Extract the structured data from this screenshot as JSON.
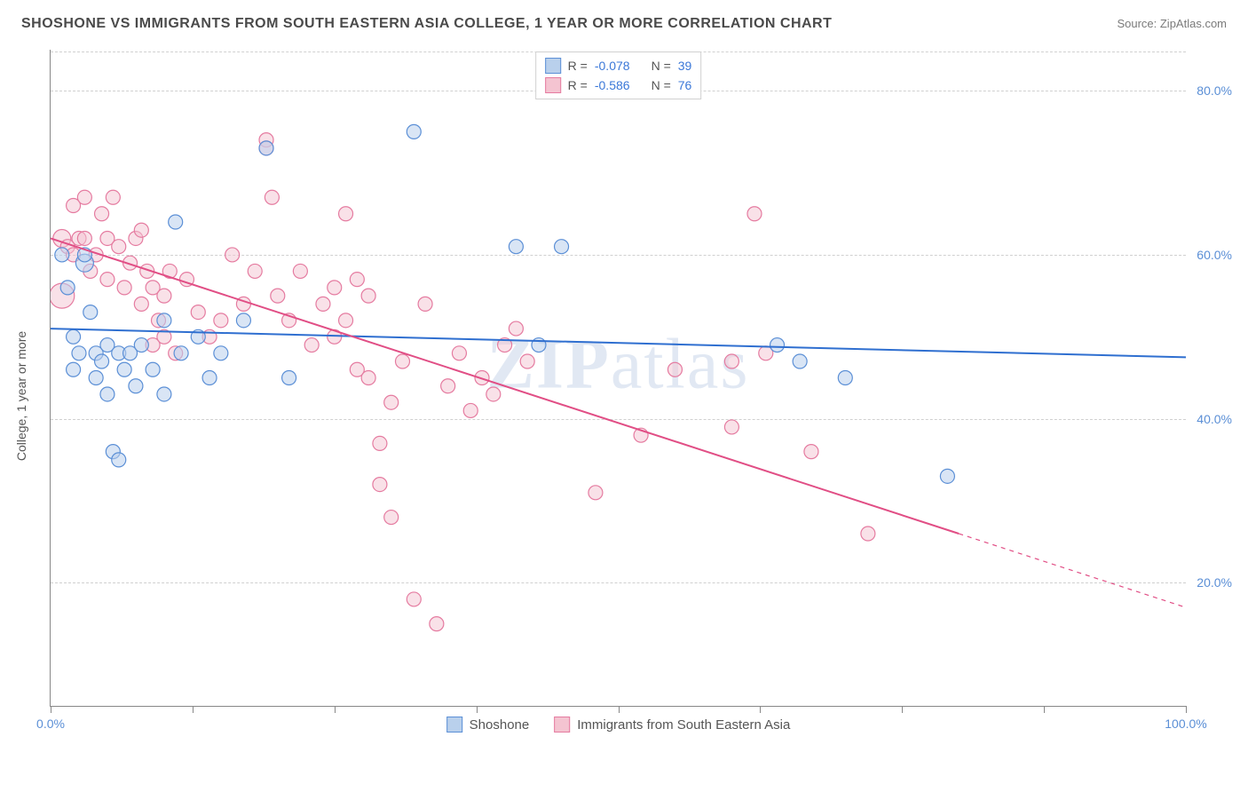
{
  "title": "SHOSHONE VS IMMIGRANTS FROM SOUTH EASTERN ASIA COLLEGE, 1 YEAR OR MORE CORRELATION CHART",
  "source": "Source: ZipAtlas.com",
  "watermark_a": "ZIP",
  "watermark_b": "atlas",
  "chart": {
    "type": "scatter",
    "ylabel": "College, 1 year or more",
    "xlim": [
      0,
      100
    ],
    "ylim": [
      5,
      85
    ],
    "xtick_positions": [
      0,
      12.5,
      25,
      37.5,
      50,
      62.5,
      75,
      87.5,
      100
    ],
    "xtick_labels": {
      "0": "0.0%",
      "100": "100.0%"
    },
    "ytick_positions": [
      20,
      40,
      60,
      80
    ],
    "ytick_labels": [
      "20.0%",
      "40.0%",
      "60.0%",
      "80.0%"
    ],
    "grid_color": "#d8d8d8",
    "background_color": "#ffffff",
    "series": [
      {
        "name": "Shoshone",
        "legend_label": "Shoshone",
        "fill": "#b9d0ec",
        "stroke": "#5b8fd6",
        "fill_opacity": 0.55,
        "r_value": "-0.078",
        "n_value": "39",
        "trend": {
          "x1": 0,
          "y1": 51,
          "x2": 100,
          "y2": 47.5,
          "solid_until_x": 100,
          "color": "#2f6fd0",
          "width": 2
        },
        "points": [
          {
            "x": 1,
            "y": 60,
            "r": 8
          },
          {
            "x": 1.5,
            "y": 56,
            "r": 8
          },
          {
            "x": 2,
            "y": 50,
            "r": 8
          },
          {
            "x": 2,
            "y": 46,
            "r": 8
          },
          {
            "x": 2.5,
            "y": 48,
            "r": 8
          },
          {
            "x": 3,
            "y": 59,
            "r": 10
          },
          {
            "x": 3,
            "y": 60,
            "r": 8
          },
          {
            "x": 3.5,
            "y": 53,
            "r": 8
          },
          {
            "x": 4,
            "y": 48,
            "r": 8
          },
          {
            "x": 4,
            "y": 45,
            "r": 8
          },
          {
            "x": 4.5,
            "y": 47,
            "r": 8
          },
          {
            "x": 5,
            "y": 49,
            "r": 8
          },
          {
            "x": 5,
            "y": 43,
            "r": 8
          },
          {
            "x": 5.5,
            "y": 36,
            "r": 8
          },
          {
            "x": 6,
            "y": 35,
            "r": 8
          },
          {
            "x": 6,
            "y": 48,
            "r": 8
          },
          {
            "x": 6.5,
            "y": 46,
            "r": 8
          },
          {
            "x": 7,
            "y": 48,
            "r": 8
          },
          {
            "x": 7.5,
            "y": 44,
            "r": 8
          },
          {
            "x": 8,
            "y": 49,
            "r": 8
          },
          {
            "x": 9,
            "y": 46,
            "r": 8
          },
          {
            "x": 10,
            "y": 43,
            "r": 8
          },
          {
            "x": 10,
            "y": 52,
            "r": 8
          },
          {
            "x": 11,
            "y": 64,
            "r": 8
          },
          {
            "x": 11.5,
            "y": 48,
            "r": 8
          },
          {
            "x": 13,
            "y": 50,
            "r": 8
          },
          {
            "x": 14,
            "y": 45,
            "r": 8
          },
          {
            "x": 15,
            "y": 48,
            "r": 8
          },
          {
            "x": 17,
            "y": 52,
            "r": 8
          },
          {
            "x": 19,
            "y": 73,
            "r": 8
          },
          {
            "x": 21,
            "y": 45,
            "r": 8
          },
          {
            "x": 32,
            "y": 75,
            "r": 8
          },
          {
            "x": 41,
            "y": 61,
            "r": 8
          },
          {
            "x": 45,
            "y": 61,
            "r": 8
          },
          {
            "x": 43,
            "y": 49,
            "r": 8
          },
          {
            "x": 66,
            "y": 47,
            "r": 8
          },
          {
            "x": 70,
            "y": 45,
            "r": 8
          },
          {
            "x": 79,
            "y": 33,
            "r": 8
          },
          {
            "x": 64,
            "y": 49,
            "r": 8
          }
        ]
      },
      {
        "name": "Immigrants from South Eastern Asia",
        "legend_label": "Immigrants from South Eastern Asia",
        "fill": "#f4c4d1",
        "stroke": "#e57ba0",
        "fill_opacity": 0.5,
        "r_value": "-0.586",
        "n_value": "76",
        "trend": {
          "x1": 0,
          "y1": 62,
          "x2": 100,
          "y2": 17,
          "solid_until_x": 80,
          "color": "#e14e85",
          "width": 2
        },
        "points": [
          {
            "x": 1,
            "y": 62,
            "r": 10
          },
          {
            "x": 1,
            "y": 55,
            "r": 14
          },
          {
            "x": 1.5,
            "y": 61,
            "r": 8
          },
          {
            "x": 2,
            "y": 60,
            "r": 8
          },
          {
            "x": 2,
            "y": 66,
            "r": 8
          },
          {
            "x": 2.5,
            "y": 62,
            "r": 8
          },
          {
            "x": 3,
            "y": 67,
            "r": 8
          },
          {
            "x": 3,
            "y": 62,
            "r": 8
          },
          {
            "x": 3.5,
            "y": 58,
            "r": 8
          },
          {
            "x": 4,
            "y": 60,
            "r": 8
          },
          {
            "x": 4.5,
            "y": 65,
            "r": 8
          },
          {
            "x": 5,
            "y": 57,
            "r": 8
          },
          {
            "x": 5,
            "y": 62,
            "r": 8
          },
          {
            "x": 5.5,
            "y": 67,
            "r": 8
          },
          {
            "x": 6,
            "y": 61,
            "r": 8
          },
          {
            "x": 6.5,
            "y": 56,
            "r": 8
          },
          {
            "x": 7,
            "y": 59,
            "r": 8
          },
          {
            "x": 7.5,
            "y": 62,
            "r": 8
          },
          {
            "x": 8,
            "y": 54,
            "r": 8
          },
          {
            "x": 8,
            "y": 63,
            "r": 8
          },
          {
            "x": 8.5,
            "y": 58,
            "r": 8
          },
          {
            "x": 9,
            "y": 56,
            "r": 8
          },
          {
            "x": 9,
            "y": 49,
            "r": 8
          },
          {
            "x": 9.5,
            "y": 52,
            "r": 8
          },
          {
            "x": 10,
            "y": 55,
            "r": 8
          },
          {
            "x": 10,
            "y": 50,
            "r": 8
          },
          {
            "x": 10.5,
            "y": 58,
            "r": 8
          },
          {
            "x": 11,
            "y": 48,
            "r": 8
          },
          {
            "x": 12,
            "y": 57,
            "r": 8
          },
          {
            "x": 13,
            "y": 53,
            "r": 8
          },
          {
            "x": 14,
            "y": 50,
            "r": 8
          },
          {
            "x": 15,
            "y": 52,
            "r": 8
          },
          {
            "x": 16,
            "y": 60,
            "r": 8
          },
          {
            "x": 17,
            "y": 54,
            "r": 8
          },
          {
            "x": 18,
            "y": 58,
            "r": 8
          },
          {
            "x": 19,
            "y": 74,
            "r": 8
          },
          {
            "x": 19,
            "y": 73,
            "r": 8
          },
          {
            "x": 19.5,
            "y": 67,
            "r": 8
          },
          {
            "x": 20,
            "y": 55,
            "r": 8
          },
          {
            "x": 21,
            "y": 52,
            "r": 8
          },
          {
            "x": 22,
            "y": 58,
            "r": 8
          },
          {
            "x": 23,
            "y": 49,
            "r": 8
          },
          {
            "x": 24,
            "y": 54,
            "r": 8
          },
          {
            "x": 25,
            "y": 56,
            "r": 8
          },
          {
            "x": 25,
            "y": 50,
            "r": 8
          },
          {
            "x": 26,
            "y": 65,
            "r": 8
          },
          {
            "x": 26,
            "y": 52,
            "r": 8
          },
          {
            "x": 27,
            "y": 57,
            "r": 8
          },
          {
            "x": 27,
            "y": 46,
            "r": 8
          },
          {
            "x": 28,
            "y": 55,
            "r": 8
          },
          {
            "x": 28,
            "y": 45,
            "r": 8
          },
          {
            "x": 29,
            "y": 37,
            "r": 8
          },
          {
            "x": 29,
            "y": 32,
            "r": 8
          },
          {
            "x": 30,
            "y": 42,
            "r": 8
          },
          {
            "x": 30,
            "y": 28,
            "r": 8
          },
          {
            "x": 31,
            "y": 47,
            "r": 8
          },
          {
            "x": 32,
            "y": 18,
            "r": 8
          },
          {
            "x": 33,
            "y": 54,
            "r": 8
          },
          {
            "x": 34,
            "y": 15,
            "r": 8
          },
          {
            "x": 35,
            "y": 44,
            "r": 8
          },
          {
            "x": 36,
            "y": 48,
            "r": 8
          },
          {
            "x": 37,
            "y": 41,
            "r": 8
          },
          {
            "x": 38,
            "y": 45,
            "r": 8
          },
          {
            "x": 39,
            "y": 43,
            "r": 8
          },
          {
            "x": 40,
            "y": 49,
            "r": 8
          },
          {
            "x": 41,
            "y": 51,
            "r": 8
          },
          {
            "x": 42,
            "y": 47,
            "r": 8
          },
          {
            "x": 48,
            "y": 31,
            "r": 8
          },
          {
            "x": 52,
            "y": 38,
            "r": 8
          },
          {
            "x": 55,
            "y": 46,
            "r": 8
          },
          {
            "x": 60,
            "y": 47,
            "r": 8
          },
          {
            "x": 62,
            "y": 65,
            "r": 8
          },
          {
            "x": 63,
            "y": 48,
            "r": 8
          },
          {
            "x": 67,
            "y": 36,
            "r": 8
          },
          {
            "x": 72,
            "y": 26,
            "r": 8
          },
          {
            "x": 60,
            "y": 39,
            "r": 8
          }
        ]
      }
    ],
    "legend_top": {
      "r_label": "R =",
      "n_label": "N ="
    },
    "label_fontsize": 14,
    "title_fontsize": 16
  }
}
